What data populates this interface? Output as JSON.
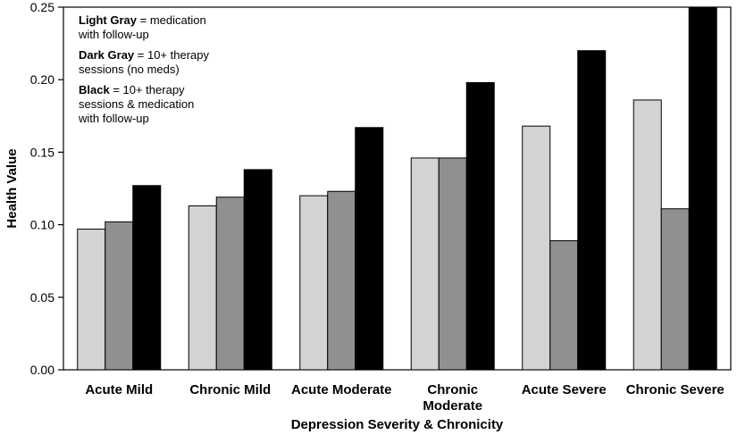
{
  "chart_data": {
    "type": "bar",
    "categories": [
      [
        "Acute Mild"
      ],
      [
        "Chronic Mild"
      ],
      [
        "Acute Moderate"
      ],
      [
        "Chronic",
        "Moderate"
      ],
      [
        "Acute Severe"
      ],
      [
        "Chronic Severe"
      ]
    ],
    "series": [
      {
        "values": [
          0.097,
          0.113,
          0.12,
          0.146,
          0.168,
          0.186
        ],
        "color": "#d3d3d3"
      },
      {
        "values": [
          0.102,
          0.119,
          0.123,
          0.146,
          0.089,
          0.111
        ],
        "color": "#909090"
      },
      {
        "values": [
          0.127,
          0.138,
          0.167,
          0.198,
          0.22,
          0.25
        ],
        "color": "#000000"
      }
    ],
    "xlabel": "Depression Severity & Chronicity",
    "ylabel": "Health Value",
    "ylim": [
      0,
      0.25
    ],
    "yticks": [
      "0.00",
      "0.05",
      "0.10",
      "0.15",
      "0.20",
      "0.25"
    ],
    "grid": false,
    "legend": {
      "placement": "top-left",
      "entries": [
        {
          "bold": "Light Gray",
          "lines": [
            " = medication",
            "with follow-up"
          ]
        },
        {
          "bold": "Dark Gray",
          "lines": [
            " = 10+ therapy",
            "sessions (no meds)"
          ]
        },
        {
          "bold": "Black",
          "lines": [
            " = 10+ therapy",
            "sessions & medication",
            "with follow-up"
          ]
        }
      ]
    }
  }
}
